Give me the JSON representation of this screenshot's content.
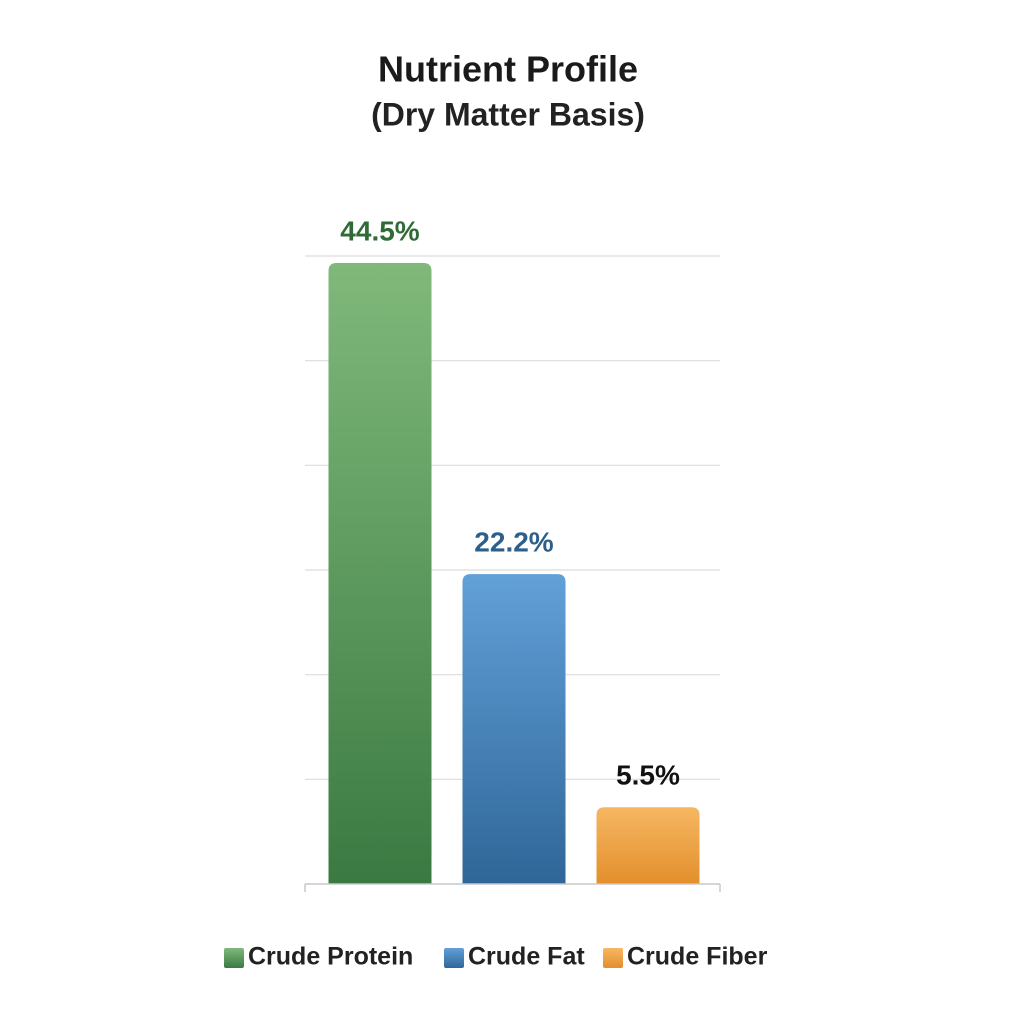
{
  "chart_data": {
    "type": "bar",
    "title": "Nutrient Profile",
    "subtitle": "(Dry Matter Basis)",
    "categories": [
      "Crude Protein",
      "Crude Fat",
      "Crude Fiber"
    ],
    "values": [
      44.5,
      22.2,
      5.5
    ],
    "value_labels": [
      "44.5%",
      "22.2%",
      "5.5%"
    ],
    "colors": [
      "#4e9a52",
      "#4a87c0",
      "#eea446"
    ],
    "ylim": [
      0,
      45
    ],
    "yticks": [
      7.5,
      15,
      22.5,
      30,
      37.5,
      45
    ],
    "grid": true,
    "legend": "bottom"
  }
}
